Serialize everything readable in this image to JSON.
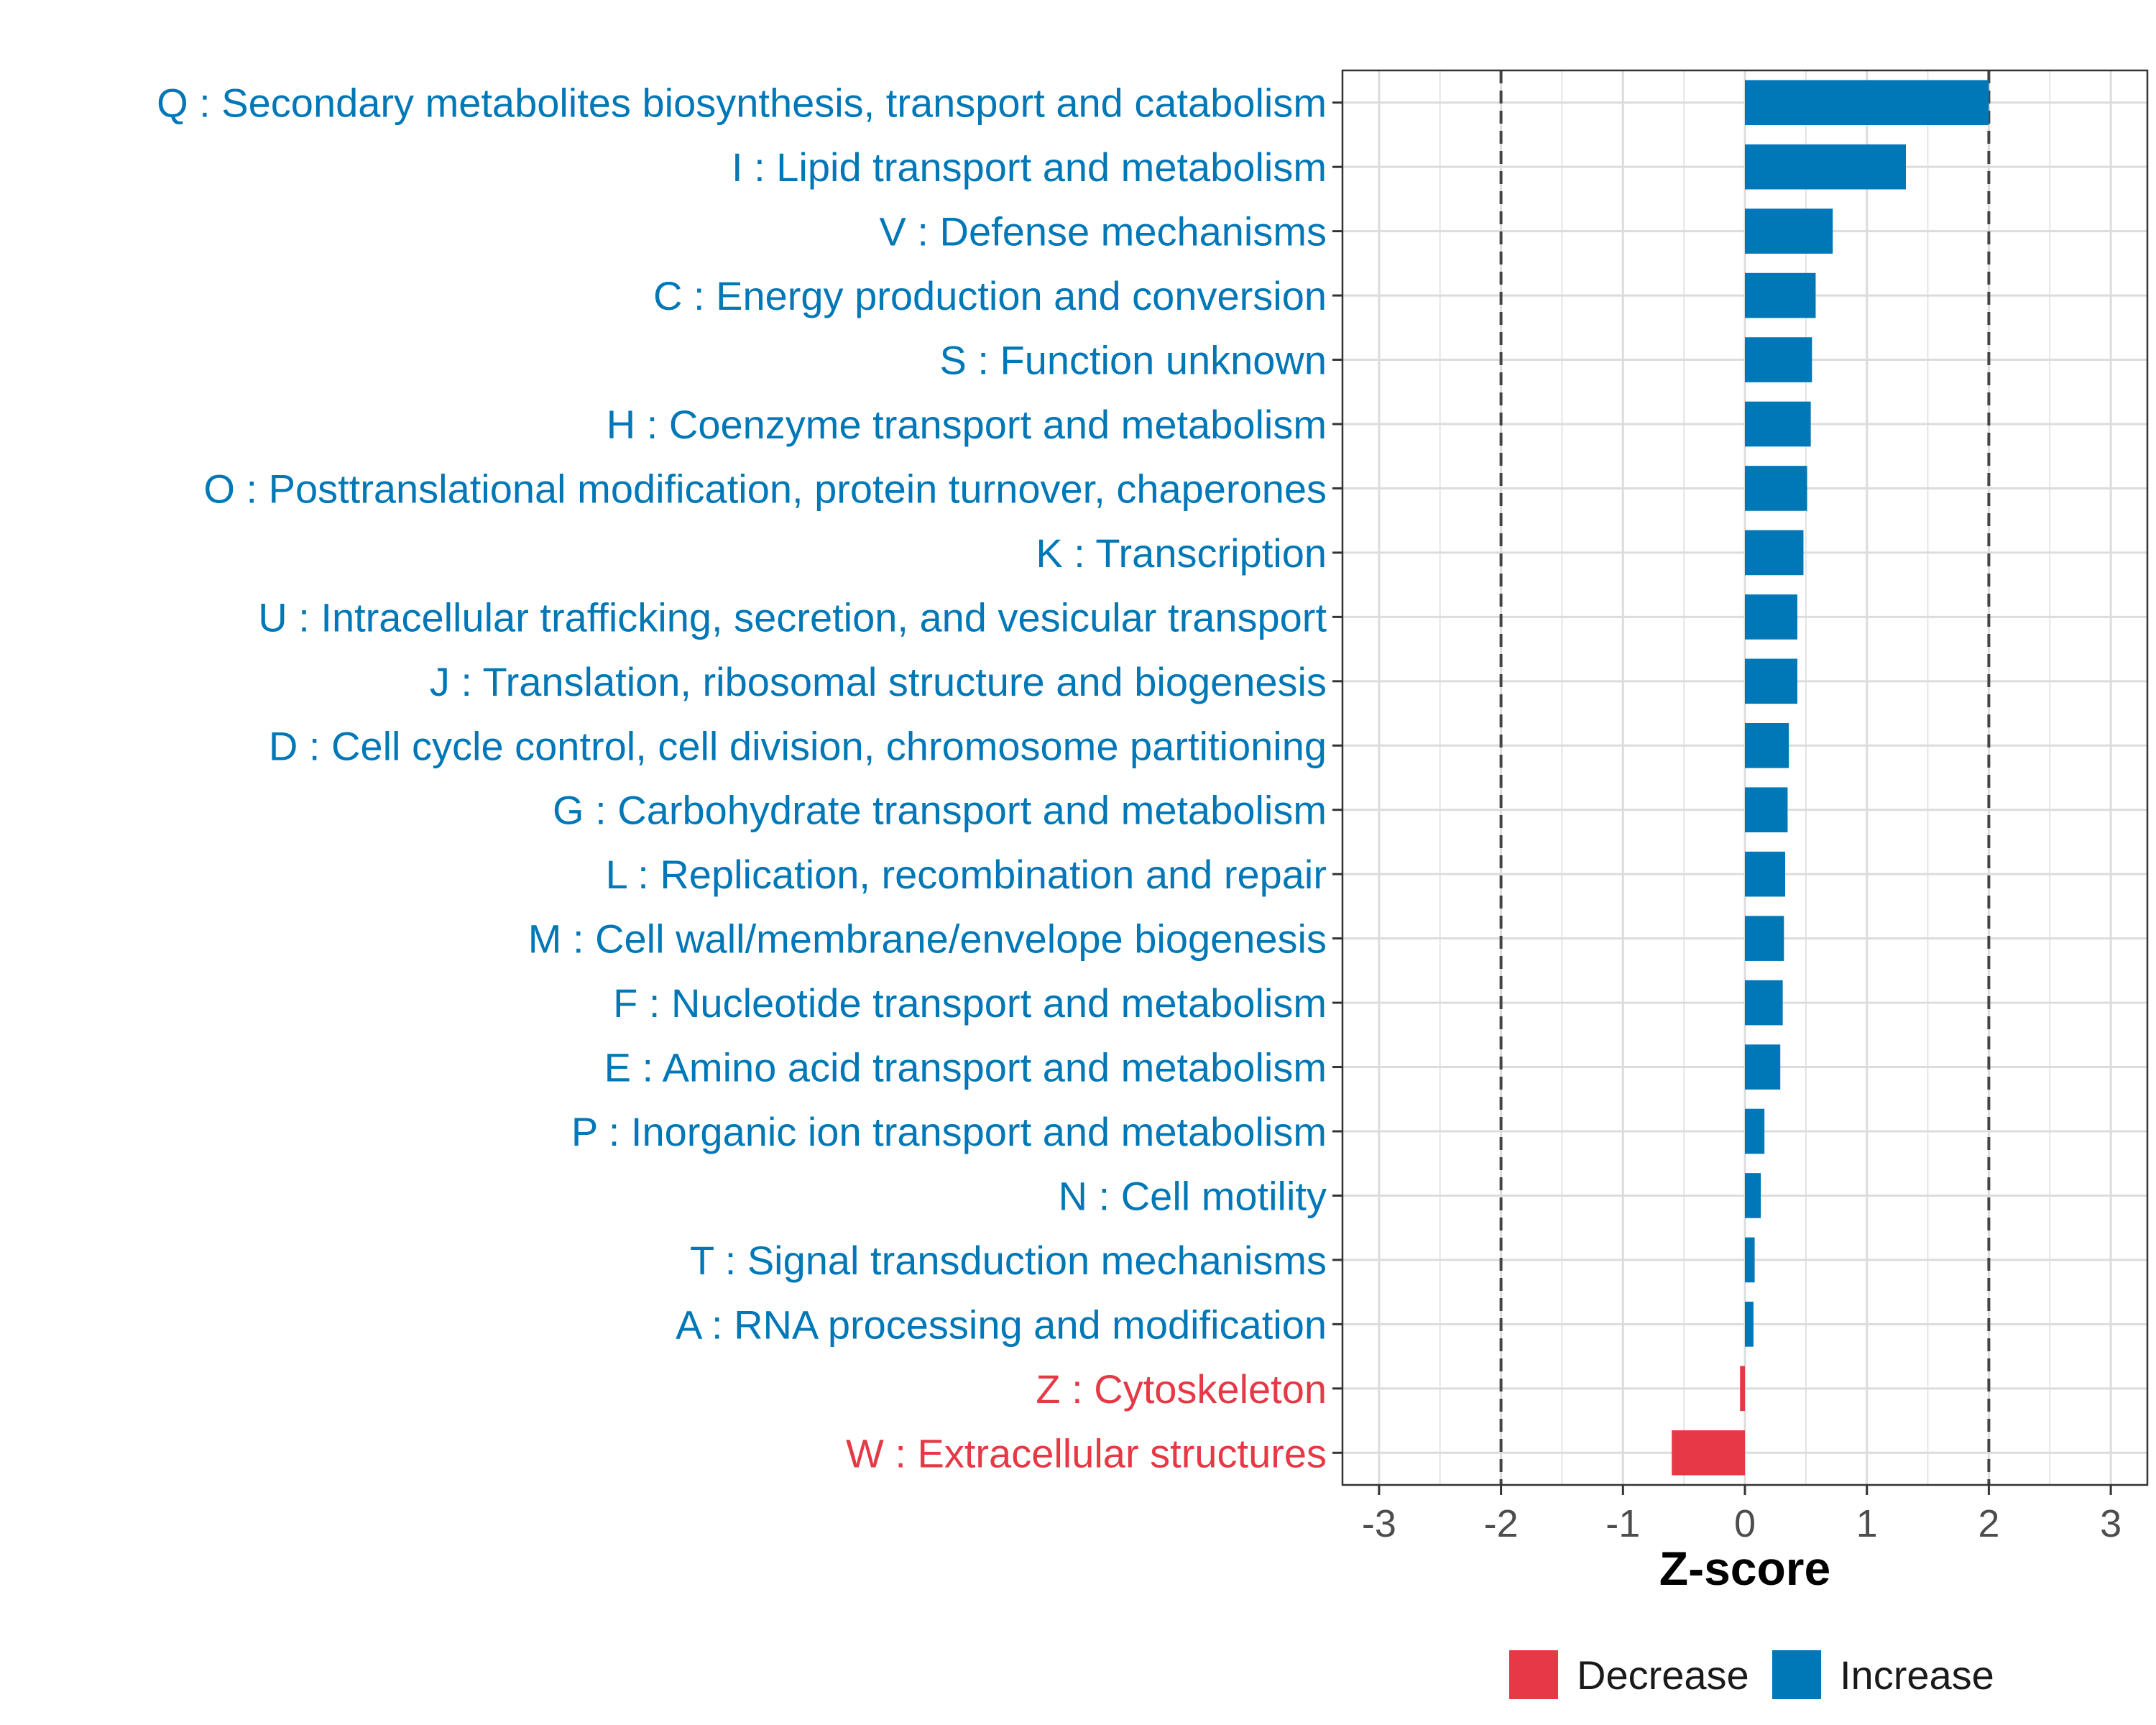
{
  "chart_data": {
    "type": "bar",
    "orientation": "horizontal",
    "xlabel": "Z-score",
    "xlim": [
      -3.3,
      3.3
    ],
    "x_ticks": [
      -3,
      -2,
      -1,
      0,
      1,
      2,
      3
    ],
    "x_tick_labels": [
      "-3",
      "-2",
      "-1",
      "0",
      "1",
      "2",
      "3"
    ],
    "reference_lines": [
      -2,
      2
    ],
    "grid": true,
    "categories": [
      "Q : Secondary metabolites biosynthesis, transport and catabolism",
      "I : Lipid transport and metabolism",
      "V : Defense mechanisms",
      "C : Energy production and conversion",
      "S : Function unknown",
      "H : Coenzyme transport and metabolism",
      "O : Posttranslational modification, protein turnover, chaperones",
      "K : Transcription",
      "U : Intracellular trafficking, secretion, and vesicular transport",
      "J : Translation, ribosomal structure and biogenesis",
      "D : Cell cycle control, cell division, chromosome partitioning",
      "G : Carbohydrate transport and metabolism",
      "L : Replication, recombination and repair",
      "M : Cell wall/membrane/envelope biogenesis",
      "F : Nucleotide transport and metabolism",
      "E : Amino acid transport and metabolism",
      "P : Inorganic ion transport and metabolism",
      "N : Cell motility",
      "T : Signal transduction mechanisms",
      "A : RNA processing and modification",
      "Z : Cytoskeleton",
      "W : Extracellular structures"
    ],
    "values": [
      2.0,
      1.32,
      0.72,
      0.58,
      0.55,
      0.54,
      0.51,
      0.48,
      0.43,
      0.43,
      0.36,
      0.35,
      0.33,
      0.32,
      0.31,
      0.29,
      0.16,
      0.13,
      0.08,
      0.07,
      -0.04,
      -0.6
    ],
    "groups": [
      "Increase",
      "Increase",
      "Increase",
      "Increase",
      "Increase",
      "Increase",
      "Increase",
      "Increase",
      "Increase",
      "Increase",
      "Increase",
      "Increase",
      "Increase",
      "Increase",
      "Increase",
      "Increase",
      "Increase",
      "Increase",
      "Increase",
      "Increase",
      "Decrease",
      "Decrease"
    ],
    "legend": {
      "placement": "bottom",
      "entries": [
        {
          "name": "Decrease",
          "color": "#e63946"
        },
        {
          "name": "Increase",
          "color": "#0077b6"
        }
      ]
    }
  }
}
